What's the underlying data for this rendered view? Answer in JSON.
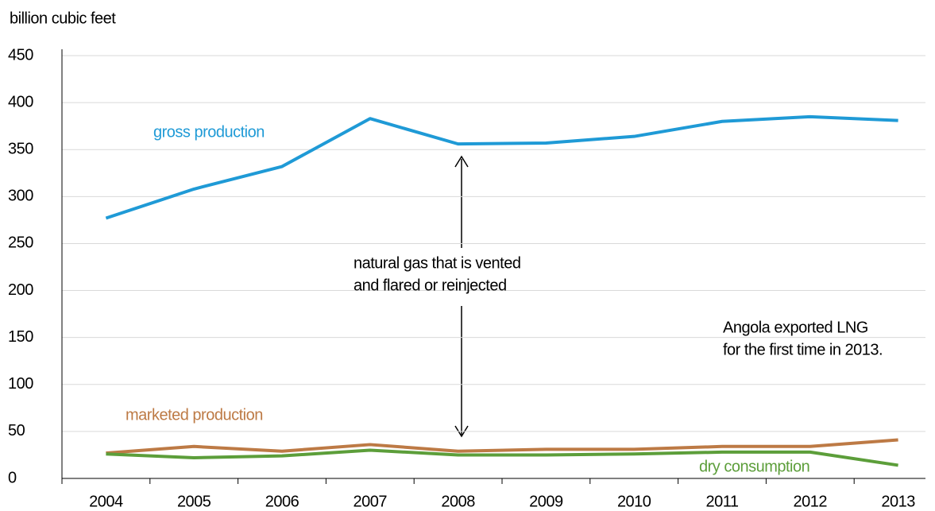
{
  "chart_data": {
    "type": "line",
    "y_label": "billion cubic feet",
    "categories": [
      "2004",
      "2005",
      "2006",
      "2007",
      "2008",
      "2009",
      "2010",
      "2011",
      "2012",
      "2013"
    ],
    "series": [
      {
        "name": "gross production",
        "color": "#1f9ad6",
        "values": [
          277,
          308,
          332,
          383,
          356,
          357,
          364,
          380,
          385,
          381
        ]
      },
      {
        "name": "marketed production",
        "color": "#bd7a45",
        "values": [
          27,
          34,
          29,
          36,
          29,
          31,
          31,
          34,
          34,
          41
        ]
      },
      {
        "name": "dry consumption",
        "color": "#5c9e3a",
        "values": [
          26,
          22,
          24,
          30,
          25,
          25,
          26,
          28,
          28,
          14
        ]
      }
    ],
    "annotations": [
      {
        "lines": [
          "natural gas that is vented",
          "and flared or reinjected"
        ]
      },
      {
        "lines": [
          "Angola exported LNG",
          "for the first time in 2013."
        ]
      }
    ],
    "ylim": [
      0,
      450
    ],
    "yticks": [
      0,
      50,
      100,
      150,
      200,
      250,
      300,
      350,
      400,
      450
    ],
    "grid": true
  }
}
